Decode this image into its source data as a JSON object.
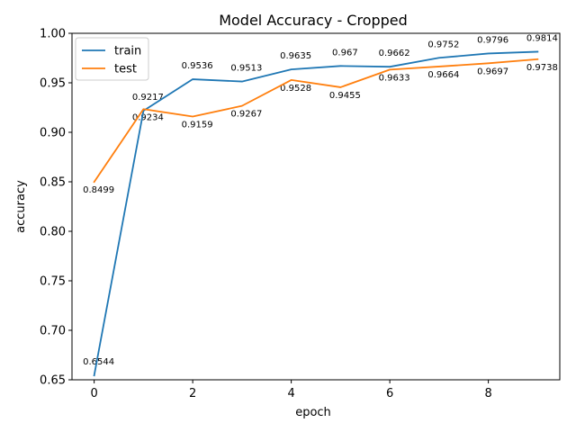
{
  "chart_data": {
    "type": "line",
    "title": "Model Accuracy - Cropped",
    "xlabel": "epoch",
    "ylabel": "accuracy",
    "x": [
      0,
      1,
      2,
      3,
      4,
      5,
      6,
      7,
      8,
      9
    ],
    "xlim": [
      -0.45,
      9.45
    ],
    "ylim": [
      0.65,
      1.0
    ],
    "xticks": [
      0,
      2,
      4,
      6,
      8
    ],
    "xtick_labels": [
      "0",
      "2",
      "4",
      "6",
      "8"
    ],
    "yticks": [
      0.65,
      0.7,
      0.75,
      0.8,
      0.85,
      0.9,
      0.95,
      1.0
    ],
    "ytick_labels": [
      "0.65",
      "0.70",
      "0.75",
      "0.80",
      "0.85",
      "0.90",
      "0.95",
      "1.00"
    ],
    "grid": false,
    "legend_position": "top-left",
    "series": [
      {
        "name": "train",
        "color": "#1f77b4",
        "values": [
          0.6544,
          0.9217,
          0.9536,
          0.9513,
          0.9635,
          0.967,
          0.9662,
          0.9752,
          0.9796,
          0.9814
        ],
        "labels": [
          "0.6544",
          "0.9217",
          "0.9536",
          "0.9513",
          "0.9635",
          "0.967",
          "0.9662",
          "0.9752",
          "0.9796",
          "0.9814"
        ]
      },
      {
        "name": "test",
        "color": "#ff7f0e",
        "values": [
          0.8499,
          0.9234,
          0.9159,
          0.9267,
          0.9528,
          0.9455,
          0.9633,
          0.9664,
          0.9697,
          0.9738
        ],
        "labels": [
          "0.8499",
          "0.9234",
          "0.9159",
          "0.9267",
          "0.9528",
          "0.9455",
          "0.9633",
          "0.9664",
          "0.9697",
          "0.9738"
        ]
      }
    ]
  }
}
